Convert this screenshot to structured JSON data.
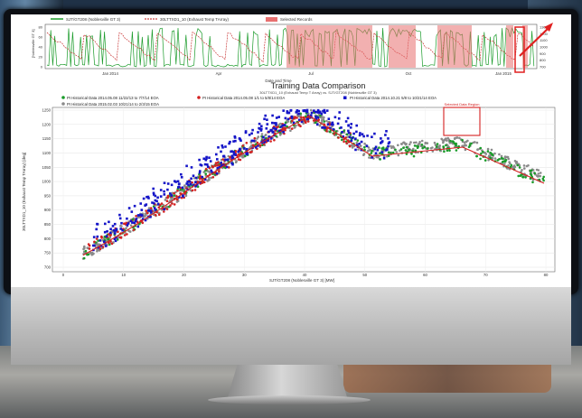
{
  "top_chart": {
    "legend": [
      {
        "label": "SJT/GT208 (Noblesville GT 3)",
        "color": "#1a9b2a"
      },
      {
        "label": "30LTTXD1_10 (Exhaust Temp TArray)",
        "color": "#c01818"
      },
      {
        "label": "Selected Records",
        "color": "#e87070"
      }
    ],
    "y_left_ticks": [
      "80",
      "60",
      "40",
      "20",
      "0"
    ],
    "y_left_label": "[Noblesville GT 3]",
    "y_right_ticks": [
      "1300",
      "1200",
      "1100",
      "1000",
      "900",
      "800",
      "700"
    ],
    "x_ticks": [
      "Jan 2014",
      "Apr",
      "Jul",
      "Oct",
      "Jan 2015"
    ],
    "x_label": "Date and Time"
  },
  "main_chart": {
    "title": "Training Data Comparison",
    "subtitle": "30LTTXD1_10 (Exhaust Temp T Array) vs. SJT/GT208 (Noblesville GT 3)",
    "legend": [
      {
        "label": "PI Historical Data 2014.05.08 11/22/13 to 7/7/14 EOA",
        "color": "#1a9b2a"
      },
      {
        "label": "PI Historical Data 2014.05.08 1/1 to 5/8/14 EOA",
        "color": "#d42020"
      },
      {
        "label": "PI Historical Data 2014.10.21 5/8 to 10/21/14 EOA",
        "color": "#1515c8"
      },
      {
        "label": "PI Historical Data 2015.02.03 10/21/14 to 2/3/15 EOA",
        "color": "#8a8a8a"
      }
    ],
    "annotation": "Selected Data Region",
    "y_label": "30LTTXD1_10 (Exhaust Temp TArray) [deg]",
    "x_label": "SJT/GT208 (Noblesville GT 3) [MW]",
    "y_ticks": [
      "1250",
      "1200",
      "1150",
      "1100",
      "1050",
      "1000",
      "950",
      "900",
      "850",
      "800",
      "750",
      "700"
    ],
    "x_ticks": [
      "0",
      "10",
      "20",
      "30",
      "40",
      "50",
      "60",
      "70",
      "80"
    ]
  }
}
